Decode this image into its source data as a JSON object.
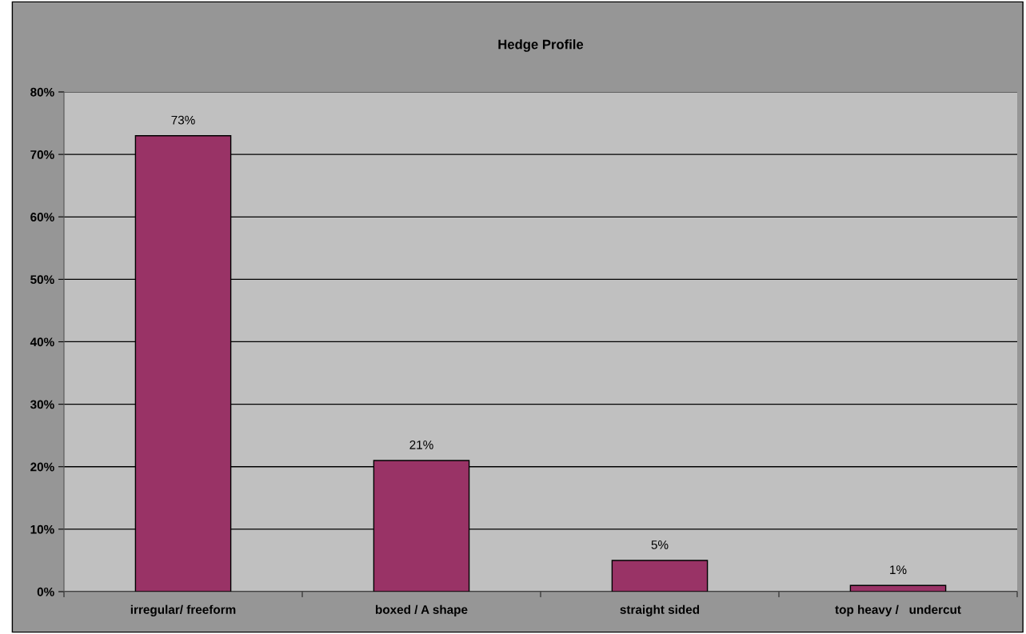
{
  "chart_data": {
    "type": "bar",
    "title": "Hedge Profile",
    "categories": [
      "irregular/ freeform",
      "boxed / A shape",
      "straight sided",
      "top heavy /   undercut"
    ],
    "values": [
      73,
      21,
      5,
      1
    ],
    "color": "#993366",
    "value_labels": [
      "73%",
      "21%",
      "5%",
      "1%"
    ],
    "ylim": [
      0,
      80
    ],
    "yticks": [
      {
        "value": 0,
        "label": "0%"
      },
      {
        "value": 10,
        "label": "10%"
      },
      {
        "value": 20,
        "label": "20%"
      },
      {
        "value": 30,
        "label": "30%"
      },
      {
        "value": 40,
        "label": "40%"
      },
      {
        "value": 50,
        "label": "50%"
      },
      {
        "value": 60,
        "label": "60%"
      },
      {
        "value": 70,
        "label": "70%"
      },
      {
        "value": 80,
        "label": "80%"
      }
    ],
    "grid": "y"
  }
}
